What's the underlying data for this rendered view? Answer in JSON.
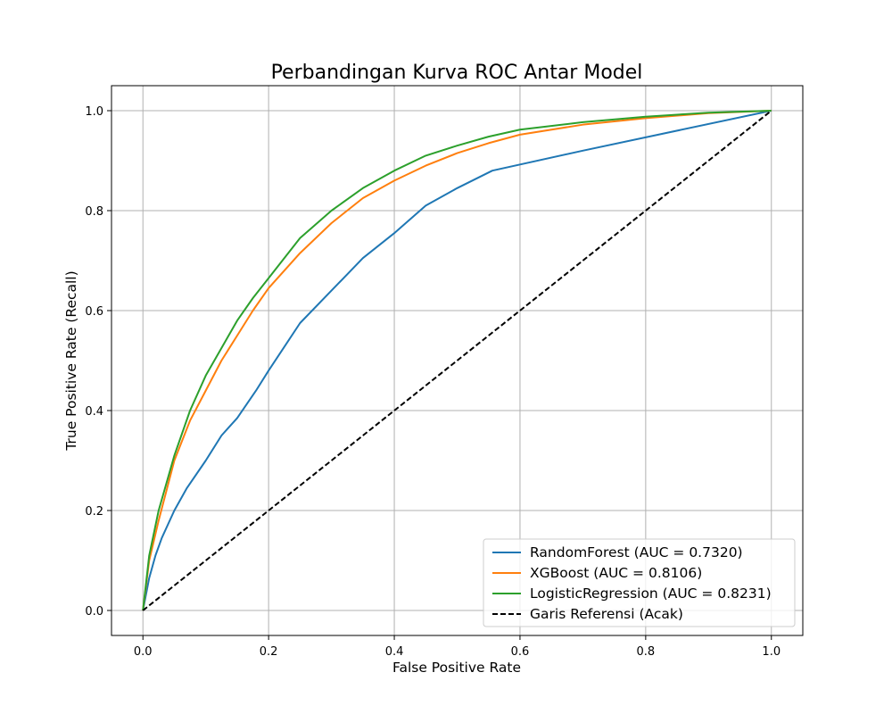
{
  "chart_data": {
    "type": "line",
    "title": "Perbandingan Kurva ROC Antar Model",
    "xlabel": "False Positive Rate",
    "ylabel": "True Positive Rate (Recall)",
    "xlim": [
      -0.05,
      1.05
    ],
    "ylim": [
      -0.05,
      1.05
    ],
    "xticks": [
      "0.0",
      "0.2",
      "0.4",
      "0.6",
      "0.8",
      "1.0"
    ],
    "yticks": [
      "0.0",
      "0.2",
      "0.4",
      "0.6",
      "0.8",
      "1.0"
    ],
    "grid": true,
    "legend_position": "lower right",
    "series": [
      {
        "name": "RandomForest (AUC = 0.7320)",
        "color": "#1f77b4",
        "style": "solid",
        "x": [
          0,
          0.01,
          0.02,
          0.03,
          0.05,
          0.07,
          0.1,
          0.125,
          0.15,
          0.18,
          0.2,
          0.25,
          0.3,
          0.35,
          0.4,
          0.45,
          0.5,
          0.556,
          0.7,
          1.0
        ],
        "y": [
          0,
          0.065,
          0.11,
          0.145,
          0.2,
          0.245,
          0.3,
          0.35,
          0.385,
          0.44,
          0.48,
          0.575,
          0.64,
          0.705,
          0.755,
          0.81,
          0.845,
          0.88,
          0.92,
          1.0
        ]
      },
      {
        "name": "XGBoost (AUC = 0.8106)",
        "color": "#ff7f0e",
        "style": "solid",
        "x": [
          0,
          0.01,
          0.025,
          0.05,
          0.075,
          0.1,
          0.125,
          0.15,
          0.175,
          0.2,
          0.25,
          0.3,
          0.35,
          0.4,
          0.45,
          0.5,
          0.55,
          0.6,
          0.7,
          0.8,
          0.9,
          1.0
        ],
        "y": [
          0,
          0.1,
          0.18,
          0.3,
          0.38,
          0.44,
          0.5,
          0.55,
          0.6,
          0.645,
          0.715,
          0.775,
          0.825,
          0.86,
          0.89,
          0.915,
          0.935,
          0.952,
          0.972,
          0.985,
          0.995,
          1.0
        ]
      },
      {
        "name": "LogisticRegression (AUC = 0.8231)",
        "color": "#2ca02c",
        "style": "solid",
        "x": [
          0,
          0.01,
          0.025,
          0.05,
          0.075,
          0.1,
          0.125,
          0.15,
          0.175,
          0.2,
          0.25,
          0.3,
          0.35,
          0.4,
          0.45,
          0.5,
          0.55,
          0.6,
          0.7,
          0.8,
          0.9,
          1.0
        ],
        "y": [
          0,
          0.11,
          0.2,
          0.31,
          0.4,
          0.47,
          0.525,
          0.58,
          0.625,
          0.665,
          0.745,
          0.8,
          0.845,
          0.88,
          0.91,
          0.93,
          0.948,
          0.962,
          0.977,
          0.988,
          0.996,
          1.0
        ]
      },
      {
        "name": "Garis Referensi (Acak)",
        "color": "#000000",
        "style": "dashed",
        "x": [
          0,
          1
        ],
        "y": [
          0,
          1
        ]
      }
    ]
  }
}
